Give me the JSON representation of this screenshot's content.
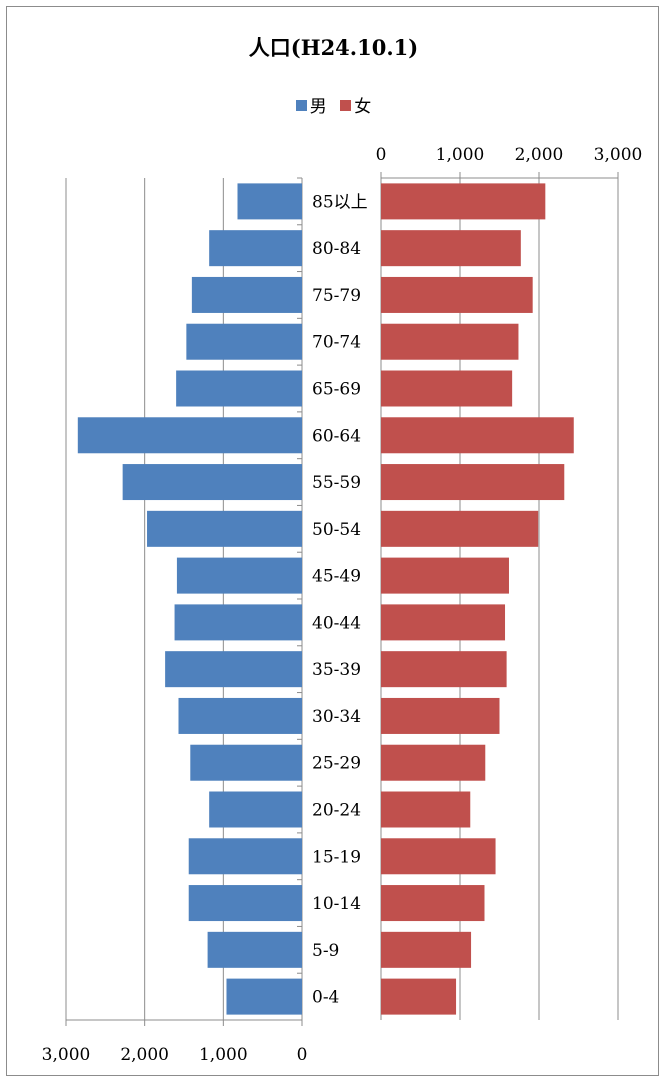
{
  "chart_data": {
    "type": "bar",
    "title": "人口(H24.10.1)",
    "categories": [
      "0-4",
      "5-9",
      "10-14",
      "15-19",
      "20-24",
      "25-29",
      "30-34",
      "35-39",
      "40-44",
      "45-49",
      "50-54",
      "55-59",
      "60-64",
      "65-69",
      "70-74",
      "75-79",
      "80-84",
      "85以上"
    ],
    "series": [
      {
        "name": "男",
        "color": "#4f81bd",
        "values": [
          960,
          1200,
          1440,
          1440,
          1180,
          1420,
          1570,
          1740,
          1620,
          1590,
          1970,
          2280,
          2850,
          1600,
          1470,
          1400,
          1180,
          820
        ]
      },
      {
        "name": "女",
        "color": "#c0504d",
        "values": [
          950,
          1140,
          1310,
          1450,
          1130,
          1320,
          1500,
          1590,
          1570,
          1620,
          1990,
          2320,
          2440,
          1660,
          1740,
          1920,
          1770,
          2080
        ]
      }
    ],
    "left_axis": {
      "range": [
        0,
        3000
      ],
      "ticks": [
        "0",
        "1,000",
        "2,000",
        "3,000"
      ]
    },
    "right_axis": {
      "range": [
        0,
        3000
      ],
      "ticks": [
        "0",
        "1,000",
        "2,000",
        "3,000"
      ]
    },
    "grid": true,
    "legend_position": "top"
  }
}
